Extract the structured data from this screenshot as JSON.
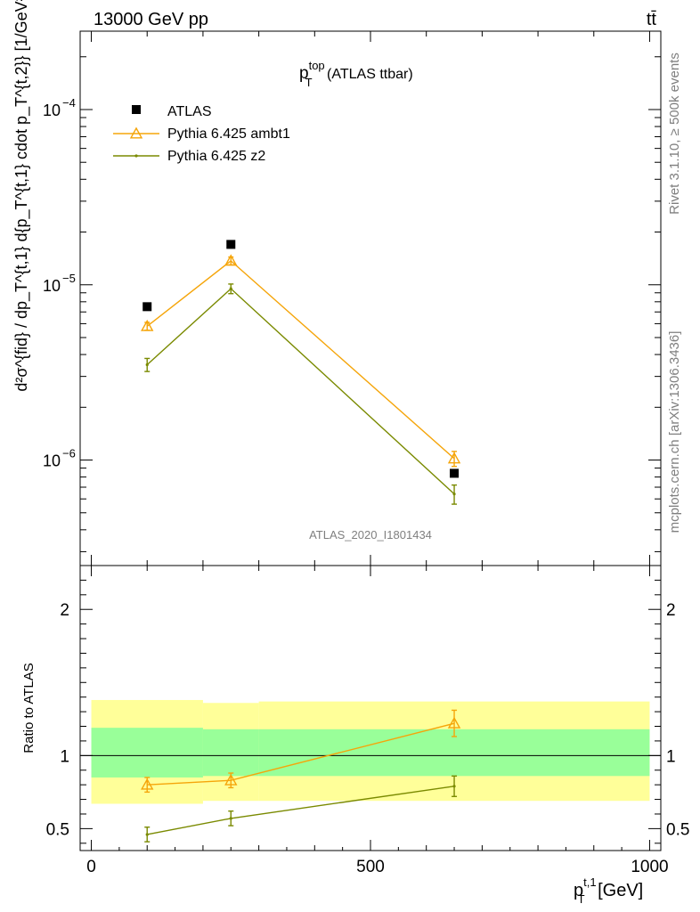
{
  "header": {
    "left": "13000 GeV pp",
    "right": "tt̄"
  },
  "side_text": {
    "rivet": "Rivet 3.1.10, ≥ 500k events",
    "mcplots": "mcplots.cern.ch [arXiv:1306.3436]"
  },
  "top_panel": {
    "title_main": "p",
    "title_sub": "T",
    "title_sup": "top",
    "title_rest": " (ATLAS ttbar)",
    "ylabel": "d²σ^{fid} / dp_T^{t,1} d{p_T^{t,1} cdot p_T^{t,2}} [1/GeV²]",
    "analysis_id": "ATLAS_2020_I1801434"
  },
  "bottom_panel": {
    "ylabel": "Ratio to ATLAS"
  },
  "x_axis": {
    "label_main": "p",
    "label_sub": "T",
    "label_sup": "t,1",
    "label_rest": " [GeV]"
  },
  "colors": {
    "ambt1": "#f5a50a",
    "z2": "#7a8a00",
    "band_inner": "#99ff99",
    "band_outer": "#ffff99"
  },
  "chart_data": [
    {
      "type": "scatter",
      "xlim": [
        -20,
        1020
      ],
      "ylim": [
        2.5e-07,
        0.00028
      ],
      "yscale": "log",
      "x_ticks": [
        0,
        500,
        1000
      ],
      "y_ticks": [
        {
          "value": 1e-06,
          "label": "10",
          "exp": "−6"
        },
        {
          "value": 1e-05,
          "label": "10",
          "exp": "−5"
        },
        {
          "value": 0.0001,
          "label": "10",
          "exp": "−4"
        }
      ],
      "legend_position": "top-left",
      "series": [
        {
          "name": "ATLAS",
          "marker": "square",
          "x": [
            100,
            250,
            650
          ],
          "y": [
            7.5e-06,
            1.7e-05,
            8.4e-07
          ],
          "bins": [
            [
              0,
              200
            ],
            [
              200,
              300
            ],
            [
              300,
              1000
            ]
          ]
        },
        {
          "name": "Pythia 6.425 ambt1",
          "marker": "triangle",
          "x": [
            100,
            250,
            650
          ],
          "y": [
            5.8e-06,
            1.37e-05,
            1.02e-06
          ],
          "yerr": [
            3e-07,
            7e-07,
            1e-07
          ]
        },
        {
          "name": "Pythia 6.425 z2",
          "marker": "dot",
          "x": [
            100,
            250,
            650
          ],
          "y": [
            3.5e-06,
            9.5e-06,
            6.4e-07
          ],
          "yerr": [
            3e-07,
            6e-07,
            8e-08
          ]
        }
      ]
    },
    {
      "type": "line",
      "xlim": [
        -20,
        1020
      ],
      "ylim": [
        0.35,
        2.3
      ],
      "y_ticks": [
        0.5,
        1,
        2
      ],
      "y_tick_labels": [
        "0.5",
        "1",
        "2"
      ],
      "bands": [
        {
          "x0": 0,
          "x1": 200,
          "inner": [
            0.85,
            1.19
          ],
          "outer": [
            0.67,
            1.38
          ]
        },
        {
          "x0": 200,
          "x1": 300,
          "inner": [
            0.86,
            1.18
          ],
          "outer": [
            0.69,
            1.36
          ]
        },
        {
          "x0": 300,
          "x1": 1000,
          "inner": [
            0.86,
            1.18
          ],
          "outer": [
            0.69,
            1.37
          ]
        }
      ],
      "series": [
        {
          "name": "Pythia 6.425 ambt1",
          "x": [
            100,
            250,
            650
          ],
          "y": [
            0.8,
            0.83,
            1.22
          ],
          "yerr": [
            0.05,
            0.05,
            0.09
          ]
        },
        {
          "name": "Pythia 6.425 z2",
          "x": [
            100,
            250,
            650
          ],
          "y": [
            0.46,
            0.57,
            0.79
          ],
          "yerr": [
            0.05,
            0.05,
            0.07
          ]
        }
      ]
    }
  ]
}
